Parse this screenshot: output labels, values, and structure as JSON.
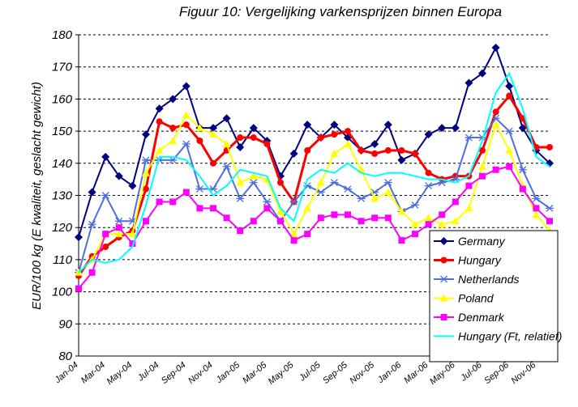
{
  "chart_data": {
    "type": "line",
    "title": "Figuur 10: Vergelijking varkensprijzen binnen Europa",
    "y_label": "EUR/100 kg (E kwaliteit, geslacht gewicht)",
    "categories": [
      "Jan-04",
      null,
      "Mar-04",
      null,
      "May-04",
      null,
      "Jul-04",
      null,
      "Sep-04",
      null,
      "Nov-04",
      null,
      "Jan-05",
      null,
      "Mar-05",
      null,
      "May-05",
      null,
      "Jul-05",
      null,
      "Sep-05",
      null,
      "Nov-05",
      null,
      "Jan-06",
      null,
      "Mar-06",
      null,
      "May-06",
      null,
      "Jul-06",
      null,
      "Sep-06",
      null,
      "Nov-06",
      null
    ],
    "ylim": [
      80,
      180
    ],
    "yticks": [
      80,
      90,
      100,
      110,
      120,
      130,
      140,
      150,
      160,
      170,
      180
    ],
    "grid": true,
    "legend": "lower right",
    "series": [
      {
        "name": "Germany",
        "color": "#000080",
        "marker": "diamond",
        "values": [
          117,
          131,
          142,
          136,
          133,
          149,
          157,
          160,
          164,
          151,
          151,
          154,
          145,
          151,
          147,
          136,
          143,
          152,
          148,
          152,
          148,
          144,
          146,
          152,
          141,
          143,
          149,
          151,
          151,
          165,
          168,
          176,
          164,
          151,
          144,
          140
        ]
      },
      {
        "name": "Hungary",
        "color": "#ff0000",
        "marker": "circle",
        "values": [
          105,
          111,
          114,
          117,
          119,
          132,
          153,
          151,
          152,
          147,
          140,
          144,
          148,
          148,
          146,
          134,
          128,
          144,
          148,
          149,
          150,
          144,
          143,
          144,
          144,
          143,
          137,
          135,
          136,
          136,
          144,
          156,
          161,
          154,
          145,
          145
        ]
      },
      {
        "name": "Netherlands",
        "color": "#4f6fdf",
        "marker": "star",
        "values": [
          106,
          121,
          130,
          122,
          122,
          141,
          141,
          141,
          146,
          132,
          132,
          139,
          129,
          134,
          128,
          122,
          128,
          133,
          131,
          134,
          132,
          129,
          131,
          134,
          125,
          127,
          133,
          134,
          135,
          148,
          148,
          154,
          150,
          138,
          129,
          126
        ]
      },
      {
        "name": "Poland",
        "color": "#ffff00",
        "marker": "triangle",
        "values": [
          106,
          110,
          118,
          118,
          118,
          137,
          144,
          147,
          155,
          151,
          149,
          146,
          134,
          136,
          135,
          125,
          118,
          126,
          134,
          143,
          146,
          138,
          129,
          131,
          125,
          121,
          123,
          121,
          122,
          126,
          139,
          152,
          144,
          133,
          124,
          119
        ]
      },
      {
        "name": "Denmark",
        "color": "#ff00ff",
        "marker": "square",
        "values": [
          101,
          106,
          118,
          120,
          115,
          122,
          128,
          128,
          131,
          126,
          126,
          123,
          119,
          122,
          126,
          122,
          116,
          118,
          123,
          124,
          124,
          122,
          123,
          123,
          116,
          118,
          121,
          124,
          128,
          133,
          136,
          138,
          139,
          132,
          126,
          122
        ]
      },
      {
        "name": "Hungary (Ft, relatief)",
        "color": "#00ffff",
        "marker": "none",
        "values": [
          106,
          110,
          109,
          110,
          114,
          127,
          142,
          142,
          141,
          136,
          130,
          133,
          138,
          137,
          136,
          126,
          122,
          135,
          138,
          137,
          140,
          137,
          136,
          137,
          137,
          136,
          135,
          135,
          134,
          136,
          147,
          162,
          168,
          157,
          142,
          139
        ]
      }
    ]
  }
}
